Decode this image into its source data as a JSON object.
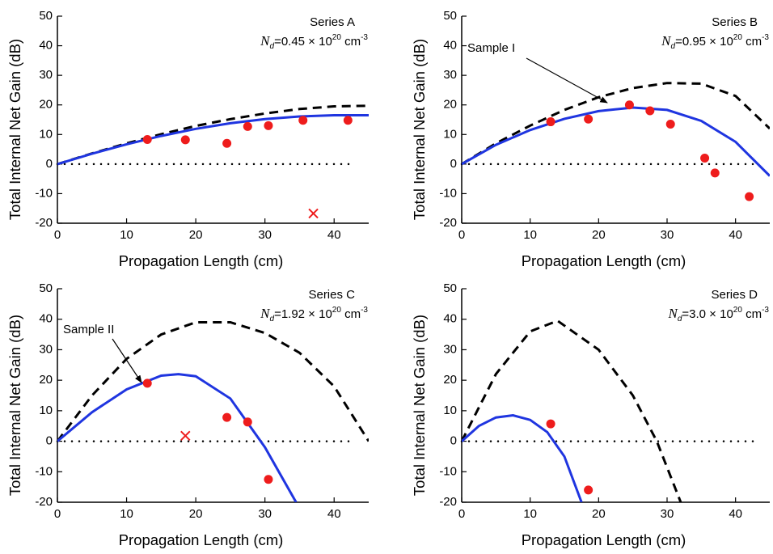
{
  "chart_data": [
    {
      "type": "scatter",
      "title": "Series A",
      "nd_symbol": "N",
      "nd_sub": "d",
      "nd_value": "=0.45 × 10",
      "nd_exp": "20",
      "nd_unit": " cm",
      "nd_unit_exp": "-3",
      "xlabel": "Propagation Length (cm)",
      "ylabel": "Total Internal Net Gain (dB)",
      "xlim": [
        0,
        45
      ],
      "xticks": [
        0,
        10,
        20,
        30,
        40
      ],
      "ylim": [
        -20,
        50
      ],
      "yticks": [
        -20,
        -10,
        0,
        10,
        20,
        30,
        40,
        50
      ],
      "reference_y": 0,
      "series": [
        {
          "mode": "dashed",
          "color": "#000000",
          "x": [
            0,
            5,
            10,
            15,
            20,
            25,
            30,
            35,
            40,
            45
          ],
          "values": [
            0,
            3.6,
            7,
            10.1,
            12.9,
            15.2,
            17.1,
            18.6,
            19.5,
            19.7
          ]
        },
        {
          "mode": "line",
          "color": "#1f35e0",
          "x": [
            0,
            5,
            10,
            15,
            20,
            25,
            30,
            35,
            40,
            45
          ],
          "values": [
            0,
            3.5,
            6.7,
            9.5,
            11.9,
            13.8,
            15.2,
            16.1,
            16.5,
            16.5
          ]
        },
        {
          "mode": "dot",
          "color": "#ee1c1c",
          "x": [
            13,
            18.5,
            24.5,
            27.5,
            30.5,
            35.5,
            42
          ],
          "values": [
            8.3,
            8.2,
            7,
            12.7,
            13,
            14.8,
            14.8
          ]
        },
        {
          "mode": "cross",
          "color": "#ee1c1c",
          "x": [
            37
          ],
          "values": [
            -16.7
          ]
        }
      ]
    },
    {
      "type": "scatter",
      "title": "Series B",
      "nd_symbol": "N",
      "nd_sub": "d",
      "nd_value": "=0.95 × 10",
      "nd_exp": "20",
      "nd_unit": " cm",
      "nd_unit_exp": "-3",
      "callout": "Sample I",
      "xlabel": "Propagation Length (cm)",
      "ylabel": "Total Internal Net Gain (dB)",
      "xlim": [
        0,
        45
      ],
      "xticks": [
        0,
        10,
        20,
        30,
        40
      ],
      "ylim": [
        -20,
        50
      ],
      "yticks": [
        -20,
        -10,
        0,
        10,
        20,
        30,
        40,
        50
      ],
      "reference_y": 0,
      "series": [
        {
          "mode": "dashed",
          "color": "#000000",
          "x": [
            0,
            5,
            10,
            15,
            20,
            25,
            30,
            35,
            40,
            45
          ],
          "values": [
            0,
            7,
            13,
            18.3,
            22.6,
            25.7,
            27.4,
            27.2,
            23,
            12
          ]
        },
        {
          "mode": "line",
          "color": "#1f35e0",
          "x": [
            0,
            5,
            10,
            15,
            20,
            25,
            30,
            35,
            40,
            45
          ],
          "values": [
            0,
            6.5,
            11.5,
            15.3,
            17.9,
            19.1,
            18.3,
            14.6,
            7.5,
            -4
          ]
        },
        {
          "mode": "dot",
          "color": "#ee1c1c",
          "x": [
            13,
            18.5,
            24.5,
            27.5,
            30.5,
            35.5,
            37,
            42
          ],
          "values": [
            14.3,
            15.2,
            20,
            18,
            13.5,
            2,
            -3,
            -11
          ]
        }
      ]
    },
    {
      "type": "scatter",
      "title": "Series C",
      "nd_symbol": "N",
      "nd_sub": "d",
      "nd_value": "=1.92 × 10",
      "nd_exp": "20",
      "nd_unit": " cm",
      "nd_unit_exp": "-3",
      "callout": "Sample II",
      "xlabel": "Propagation Length (cm)",
      "ylabel": "Total Internal Net Gain (dB)",
      "xlim": [
        0,
        45
      ],
      "xticks": [
        0,
        10,
        20,
        30,
        40
      ],
      "ylim": [
        -20,
        50
      ],
      "yticks": [
        -20,
        -10,
        0,
        10,
        20,
        30,
        40,
        50
      ],
      "reference_y": 0,
      "series": [
        {
          "mode": "dashed",
          "color": "#000000",
          "x": [
            0,
            5,
            10,
            15,
            20,
            25,
            30,
            35,
            40,
            45
          ],
          "values": [
            0,
            15,
            27,
            35,
            39,
            39,
            35.5,
            29,
            18,
            0
          ]
        },
        {
          "mode": "line",
          "color": "#1f35e0",
          "x": [
            0,
            5,
            10,
            15,
            17.5,
            20,
            25,
            30,
            34.5
          ],
          "values": [
            0,
            9.5,
            17,
            21.5,
            22,
            21.3,
            14,
            -2,
            -20
          ]
        },
        {
          "mode": "dot",
          "color": "#ee1c1c",
          "x": [
            13,
            24.5,
            27.5,
            30.5
          ],
          "values": [
            19,
            7.8,
            6.3,
            -12.5
          ]
        },
        {
          "mode": "cross",
          "color": "#ee1c1c",
          "x": [
            18.5
          ],
          "values": [
            1.8
          ]
        }
      ]
    },
    {
      "type": "scatter",
      "title": "Series D",
      "nd_symbol": "N",
      "nd_sub": "d",
      "nd_value": "=3.0 × 10",
      "nd_exp": "20",
      "nd_unit": " cm",
      "nd_unit_exp": "-3",
      "xlabel": "Propagation Length (cm)",
      "ylabel": "Total Internal Net Gain (dB)",
      "xlim": [
        0,
        45
      ],
      "xticks": [
        0,
        10,
        20,
        30,
        40
      ],
      "ylim": [
        -20,
        50
      ],
      "yticks": [
        -20,
        -10,
        0,
        10,
        20,
        30,
        40,
        50
      ],
      "reference_y": 0,
      "series": [
        {
          "mode": "dashed",
          "color": "#000000",
          "x": [
            0,
            5,
            10,
            14,
            20,
            25,
            28.5,
            32
          ],
          "values": [
            0,
            22,
            36,
            39.5,
            30,
            15,
            0,
            -20
          ]
        },
        {
          "mode": "line",
          "color": "#1f35e0",
          "x": [
            0,
            2.5,
            5,
            7.5,
            10,
            12.5,
            15,
            17.5
          ],
          "values": [
            0,
            5,
            7.8,
            8.5,
            7,
            3,
            -5,
            -20
          ]
        },
        {
          "mode": "dot",
          "color": "#ee1c1c",
          "x": [
            13,
            18.5
          ],
          "values": [
            5.7,
            -16
          ]
        }
      ]
    }
  ]
}
